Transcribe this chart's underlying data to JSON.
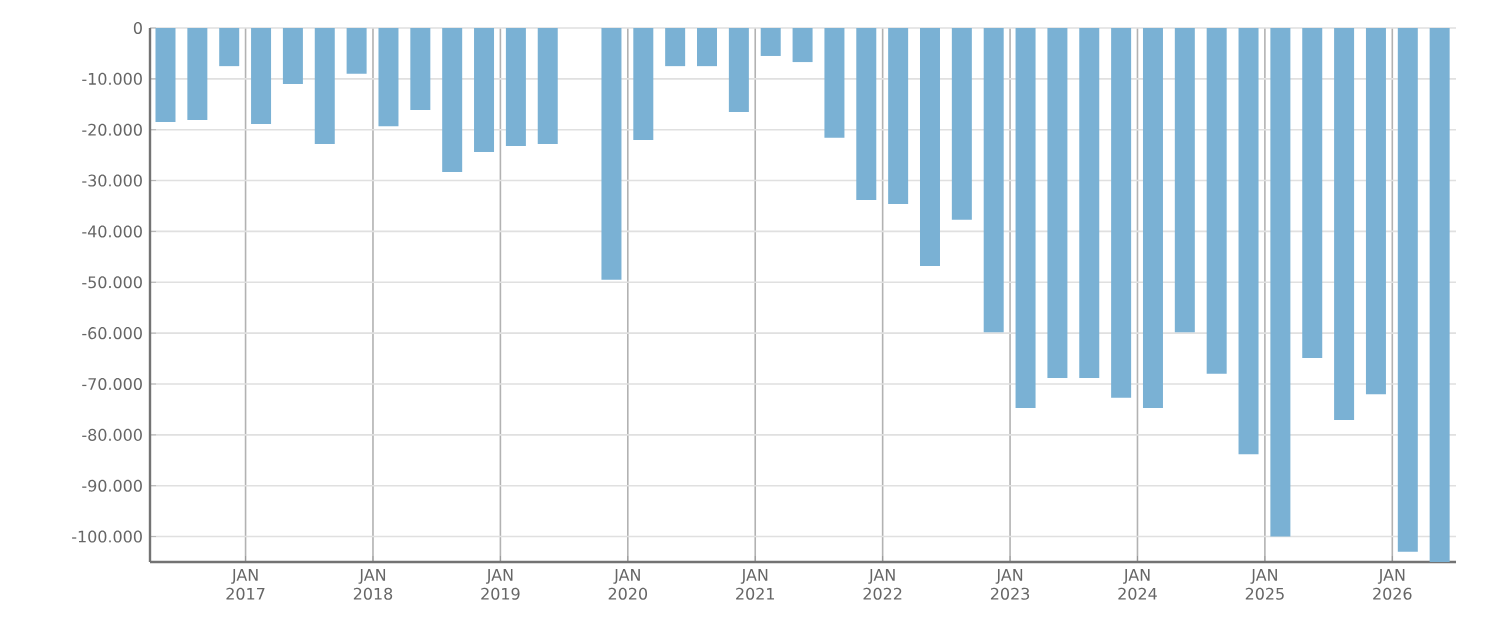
{
  "chart_data": {
    "type": "bar",
    "color": "#7ab1d4",
    "x": [
      "2016-05-15",
      "2016-08-15",
      "2016-11-15",
      "2017-02-15",
      "2017-05-15",
      "2017-08-15",
      "2017-11-15",
      "2018-02-15",
      "2018-05-15",
      "2018-08-15",
      "2018-11-15",
      "2019-02-15",
      "2019-05-15",
      "2019-08-15",
      "2019-11-15",
      "2020-02-15",
      "2020-05-15",
      "2020-08-15",
      "2020-11-15",
      "2021-02-15",
      "2021-05-15",
      "2021-08-15",
      "2021-11-15",
      "2022-02-15",
      "2022-05-15",
      "2022-08-15",
      "2022-11-15",
      "2023-02-15",
      "2023-05-15",
      "2023-08-15",
      "2023-11-15",
      "2024-02-15",
      "2024-05-15",
      "2024-08-15",
      "2024-11-15",
      "2025-02-15",
      "2025-05-15",
      "2025-08-15",
      "2025-11-15",
      "2026-02-15",
      "2026-05-15"
    ],
    "values": [
      -18500,
      -18100,
      -7500,
      -18900,
      -11000,
      -22800,
      -9000,
      -19300,
      -16100,
      -28300,
      -24400,
      -23200,
      -22800,
      null,
      -49500,
      -22000,
      -7500,
      -7500,
      -16500,
      -5500,
      -6700,
      -21600,
      -33800,
      -34600,
      -46800,
      -37700,
      -59800,
      -74700,
      -68800,
      -68800,
      -72700,
      -74700,
      -59800,
      -68000,
      -83800,
      -100000,
      -64900,
      -77100,
      -72000,
      -103000,
      -105000
    ],
    "xlim": [
      "2016-04-01",
      "2026-07-01"
    ],
    "xticks": [
      {
        "value": "2017-01-01",
        "label": "JAN 2017"
      },
      {
        "value": "2018-01-01",
        "label": "JAN 2018"
      },
      {
        "value": "2019-01-01",
        "label": "JAN 2019"
      },
      {
        "value": "2020-01-01",
        "label": "JAN 2020"
      },
      {
        "value": "2021-01-01",
        "label": "JAN 2021"
      },
      {
        "value": "2022-01-01",
        "label": "JAN 2022"
      },
      {
        "value": "2023-01-01",
        "label": "JAN 2023"
      },
      {
        "value": "2024-01-01",
        "label": "JAN 2024"
      },
      {
        "value": "2025-01-01",
        "label": "JAN 2025"
      },
      {
        "value": "2026-01-01",
        "label": "JAN 2026"
      }
    ],
    "ylim": [
      -105000,
      0
    ],
    "yticks": [
      {
        "value": -100000,
        "label": "-100.000"
      },
      {
        "value": -90000,
        "label": "-90.000"
      },
      {
        "value": -80000,
        "label": "-80.000"
      },
      {
        "value": -70000,
        "label": "-70.000"
      },
      {
        "value": -60000,
        "label": "-60.000"
      },
      {
        "value": -50000,
        "label": "-50.000"
      },
      {
        "value": -40000,
        "label": "-40.000"
      },
      {
        "value": -30000,
        "label": "-30.000"
      },
      {
        "value": -20000,
        "label": "-20.000"
      },
      {
        "value": -10000,
        "label": "-10.000"
      },
      0
    ],
    "grid": true
  }
}
